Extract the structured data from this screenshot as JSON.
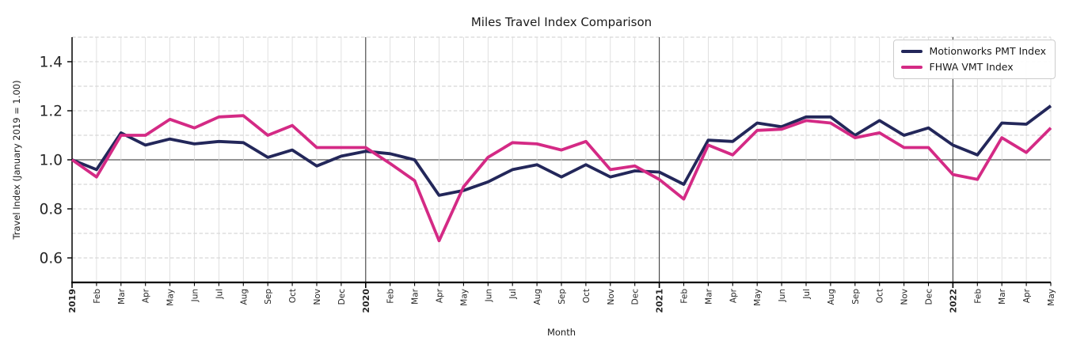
{
  "chart_data": {
    "type": "line",
    "title": "Miles Travel Index Comparison",
    "xlabel": "Month",
    "ylabel": "Travel Index (January 2019 = 1.00)",
    "ylim": [
      0.5,
      1.5
    ],
    "y_tick_labels": [
      "0.6",
      "0.8",
      "1.0",
      "1.2",
      "1.4"
    ],
    "y_tick_values": [
      0.6,
      0.8,
      1.0,
      1.2,
      1.4
    ],
    "minor_grid_step": 0.1,
    "reference_line": 1.0,
    "grid": true,
    "legend_position": "upper right",
    "categories": [
      "2019",
      "Feb",
      "Mar",
      "Apr",
      "May",
      "Jun",
      "Jul",
      "Aug",
      "Sep",
      "Oct",
      "Nov",
      "Dec",
      "2020",
      "Feb",
      "Mar",
      "Apr",
      "May",
      "Jun",
      "Jul",
      "Aug",
      "Sep",
      "Oct",
      "Nov",
      "Dec",
      "2021",
      "Feb",
      "Mar",
      "Apr",
      "May",
      "Jun",
      "Jul",
      "Aug",
      "Sep",
      "Oct",
      "Nov",
      "Dec",
      "2022",
      "Feb",
      "Mar",
      "Apr",
      "May"
    ],
    "year_boundary_indices": [
      12,
      24,
      36
    ],
    "series": [
      {
        "name": "Motionworks PMT Index",
        "color": "#23275A",
        "values": [
          1.0,
          0.96,
          1.11,
          1.06,
          1.085,
          1.065,
          1.075,
          1.07,
          1.01,
          1.04,
          0.975,
          1.015,
          1.035,
          1.025,
          1.0,
          0.855,
          0.875,
          0.91,
          0.96,
          0.98,
          0.93,
          0.98,
          0.93,
          0.955,
          0.95,
          0.9,
          1.08,
          1.075,
          1.15,
          1.135,
          1.175,
          1.175,
          1.1,
          1.16,
          1.1,
          1.13,
          1.06,
          1.02,
          1.15,
          1.145,
          1.22
        ]
      },
      {
        "name": "FHWA VMT Index",
        "color": "#D42A85",
        "values": [
          1.0,
          0.93,
          1.1,
          1.1,
          1.165,
          1.13,
          1.175,
          1.18,
          1.1,
          1.14,
          1.05,
          1.05,
          1.05,
          0.985,
          0.915,
          0.67,
          0.89,
          1.01,
          1.07,
          1.065,
          1.04,
          1.075,
          0.96,
          0.975,
          0.92,
          0.84,
          1.06,
          1.02,
          1.12,
          1.125,
          1.16,
          1.15,
          1.09,
          1.11,
          1.05,
          1.05,
          0.94,
          0.92,
          1.09,
          1.03,
          1.13
        ]
      }
    ],
    "colors": {
      "axis_text": "#262626",
      "spine": "#000000",
      "minor_grid": "#cccccc",
      "month_grid": "#d9d9d9",
      "year_line": "#3d3d3d",
      "reference_grid": "#555555"
    }
  }
}
